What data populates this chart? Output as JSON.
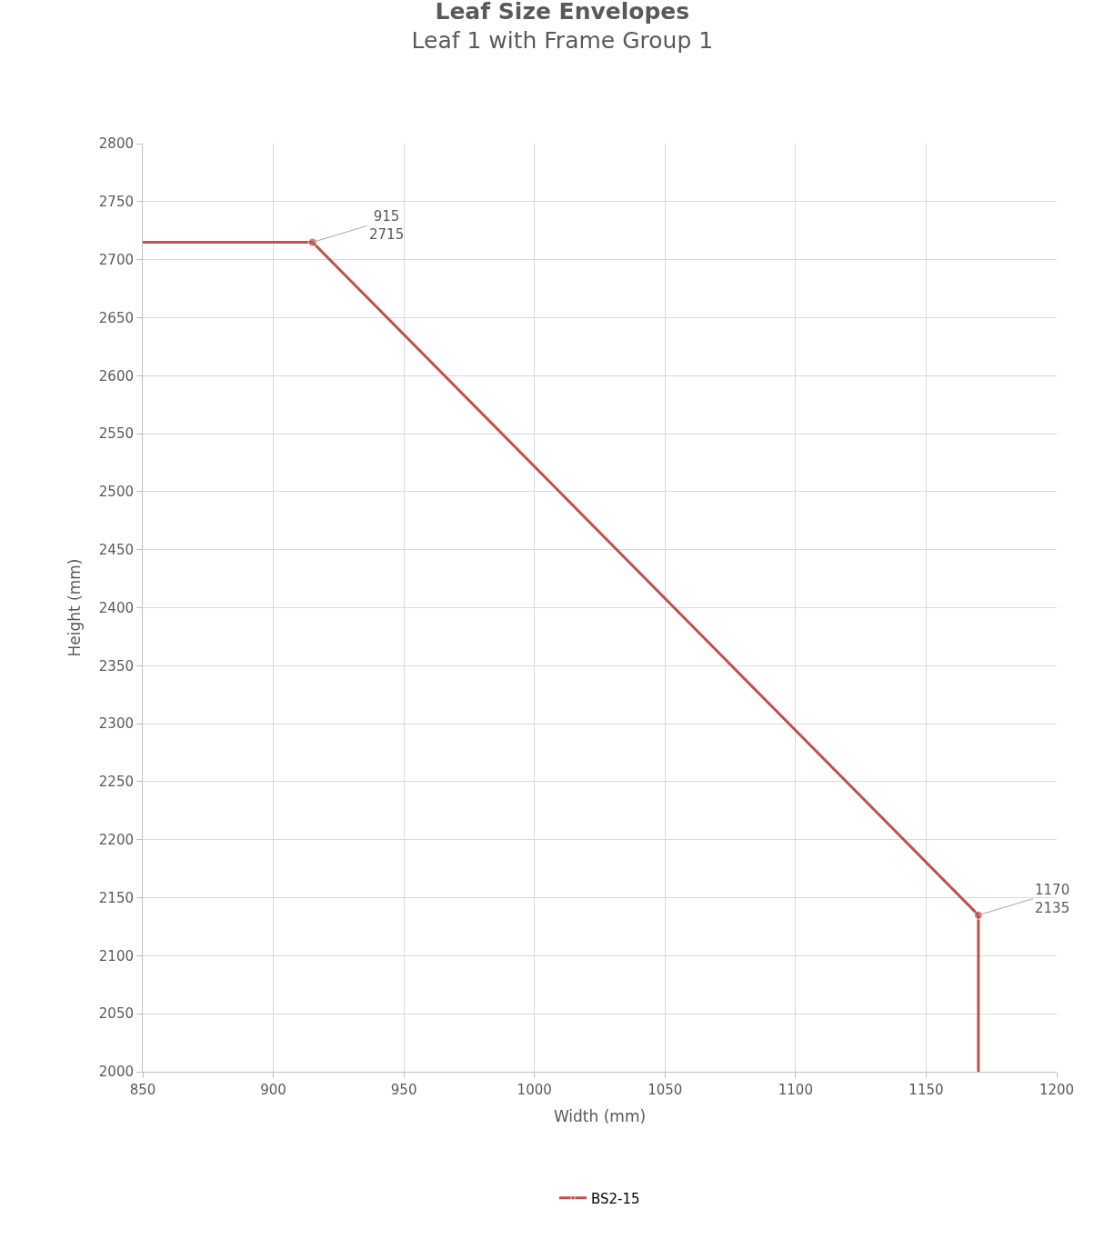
{
  "chart_data": {
    "type": "line",
    "title": "Leaf Size Envelopes",
    "subtitle": "Leaf 1 with Frame Group 1",
    "xlabel": "Width (mm)",
    "ylabel": "Height (mm)",
    "x": [
      850,
      915,
      1170,
      1170
    ],
    "series": [
      {
        "name": "BS2-15",
        "color": "#c0504d",
        "values": [
          2715,
          2715,
          2135,
          2000
        ],
        "value_labels": [
          null,
          "915\n2715",
          "1170\n2135",
          null
        ]
      }
    ],
    "xlim": [
      850,
      1200
    ],
    "xticks": [
      850,
      900,
      950,
      1000,
      1050,
      1100,
      1150,
      1200
    ],
    "ylim": [
      2000,
      2800
    ],
    "yticks": [
      2000,
      2050,
      2100,
      2150,
      2200,
      2250,
      2300,
      2350,
      2400,
      2450,
      2500,
      2550,
      2600,
      2650,
      2700,
      2750,
      2800
    ],
    "grid": true,
    "legend": "bottom",
    "marker": "circle",
    "line_style": "solid"
  }
}
